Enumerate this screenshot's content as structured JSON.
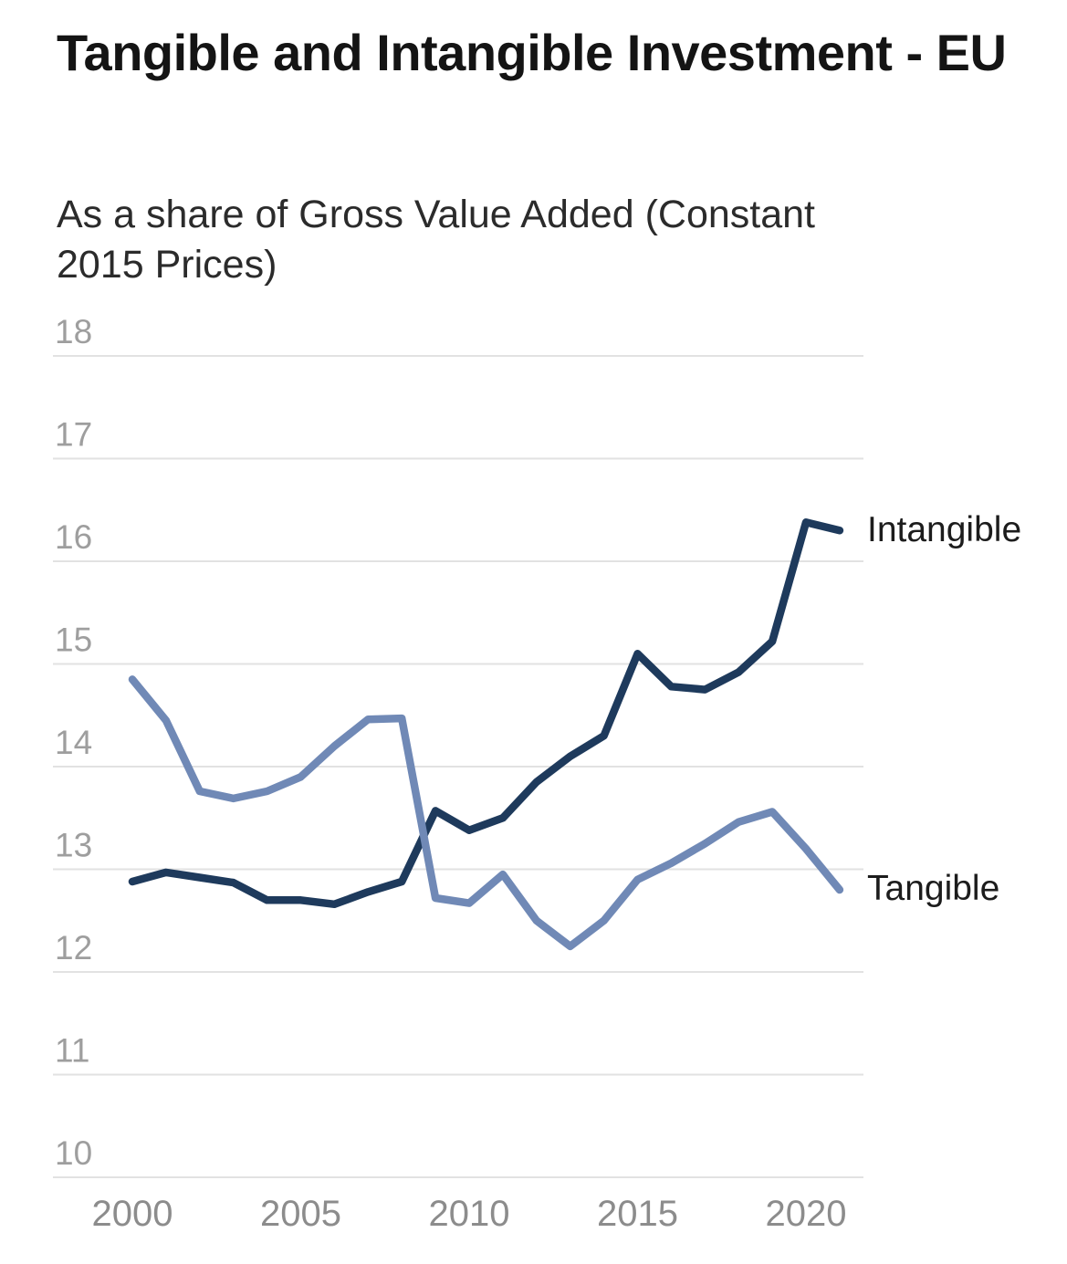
{
  "header": {
    "title": "Tangible and Intangible Investment - EU",
    "subtitle": "As a share of Gross Value Added (Constant 2015 Prices)"
  },
  "chart_data": {
    "type": "line",
    "x": [
      2000,
      2001,
      2002,
      2003,
      2004,
      2005,
      2006,
      2007,
      2008,
      2009,
      2010,
      2011,
      2012,
      2013,
      2014,
      2015,
      2016,
      2017,
      2018,
      2019,
      2020,
      2021
    ],
    "series": [
      {
        "name": "Intangible",
        "color": "#1e3a5c",
        "values": [
          12.88,
          12.97,
          12.92,
          12.87,
          12.7,
          12.7,
          12.66,
          12.78,
          12.88,
          13.57,
          13.38,
          13.5,
          13.85,
          14.1,
          14.3,
          15.1,
          14.78,
          14.75,
          14.92,
          15.22,
          16.38,
          16.3
        ]
      },
      {
        "name": "Tangible",
        "color": "#7089b6",
        "values": [
          14.85,
          14.45,
          13.76,
          13.69,
          13.76,
          13.9,
          14.2,
          14.46,
          14.47,
          12.72,
          12.67,
          12.95,
          12.5,
          12.25,
          12.5,
          12.9,
          13.06,
          13.25,
          13.46,
          13.56,
          13.2,
          12.8
        ]
      }
    ],
    "title": "Tangible and Intangible Investment - EU",
    "subtitle": "As a share of Gross Value Added (Constant 2015 Prices)",
    "xlabel": "",
    "ylabel": "",
    "ylim": [
      10,
      18
    ],
    "xlim": [
      2000,
      2021
    ],
    "yticks": [
      10,
      11,
      12,
      13,
      14,
      15,
      16,
      17,
      18
    ],
    "xticks": [
      2000,
      2005,
      2010,
      2015,
      2020
    ],
    "grid": true,
    "legend_position": "right-of-line-ends",
    "colors": {
      "gridline": "#e2e2e2",
      "ytick_label": "#9e9e9e",
      "xtick_label": "#8c8c8c",
      "series_label": "#1c1c1c",
      "background": "#ffffff"
    }
  }
}
